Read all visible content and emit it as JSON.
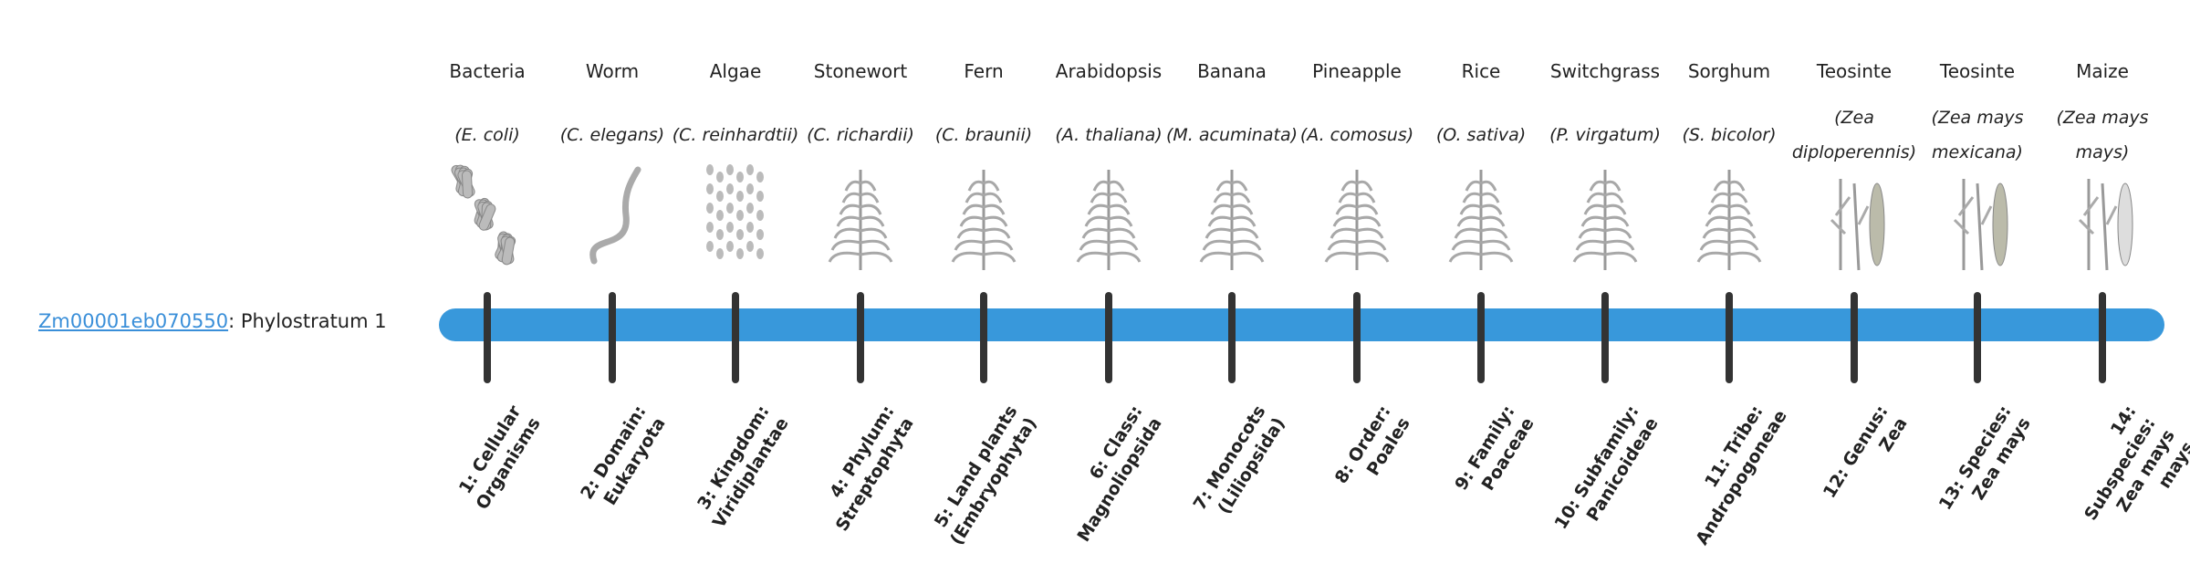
{
  "gene": {
    "id": "Zm00001eb070550",
    "suffix": ": Phylostratum 1"
  },
  "colors": {
    "bar": "#3898db",
    "tick": "#333333",
    "link": "#3a8fd9"
  },
  "strata": [
    {
      "common": "Bacteria",
      "species": "(E. coli)",
      "label": "1: Cellular Organisms",
      "icon": "bacteria-icon"
    },
    {
      "common": "Worm",
      "species": "(C. elegans)",
      "label": "2: Domain: Eukaryota",
      "icon": "worm-icon"
    },
    {
      "common": "Algae",
      "species": "(C. reinhardtii)",
      "label": "3: Kingdom: Viridiplantae",
      "icon": "algae-icon"
    },
    {
      "common": "Stonewort",
      "species": "(C. richardii)",
      "label": "4: Phylum: Streptophyta",
      "icon": "stonewort-icon"
    },
    {
      "common": "Fern",
      "species": "(C. braunii)",
      "label": "5: Land plants (Embryophyta)",
      "icon": "fern-icon"
    },
    {
      "common": "Arabidopsis",
      "species": "(A. thaliana)",
      "label": "6: Class: Magnoliopsida",
      "icon": "arabidopsis-icon"
    },
    {
      "common": "Banana",
      "species": "(M. acuminata)",
      "label": "7: Monocots (Liliopsida)",
      "icon": "banana-icon"
    },
    {
      "common": "Pineapple",
      "species": "(A. comosus)",
      "label": "8: Order: Poales",
      "icon": "pineapple-icon"
    },
    {
      "common": "Rice",
      "species": "(O. sativa)",
      "label": "9: Family: Poaceae",
      "icon": "rice-icon"
    },
    {
      "common": "Switchgrass",
      "species": "(P. virgatum)",
      "label": "10: Subfamily: Panicoideae",
      "icon": "switchgrass-icon"
    },
    {
      "common": "Sorghum",
      "species": "(S. bicolor)",
      "label": "11: Tribe: Andropogoneae",
      "icon": "sorghum-icon"
    },
    {
      "common": "Teosinte",
      "species": "(Zea diploperennis)",
      "label": "12: Genus: Zea",
      "icon": "teosinte-icon"
    },
    {
      "common": "Teosinte",
      "species": "(Zea mays mexicana)",
      "label": "13: Species: Zea mays",
      "icon": "teosinte-icon"
    },
    {
      "common": "Maize",
      "species": "(Zea mays mays)",
      "label": "14: Subspecies: Zea mays mays",
      "icon": "maize-icon"
    }
  ]
}
